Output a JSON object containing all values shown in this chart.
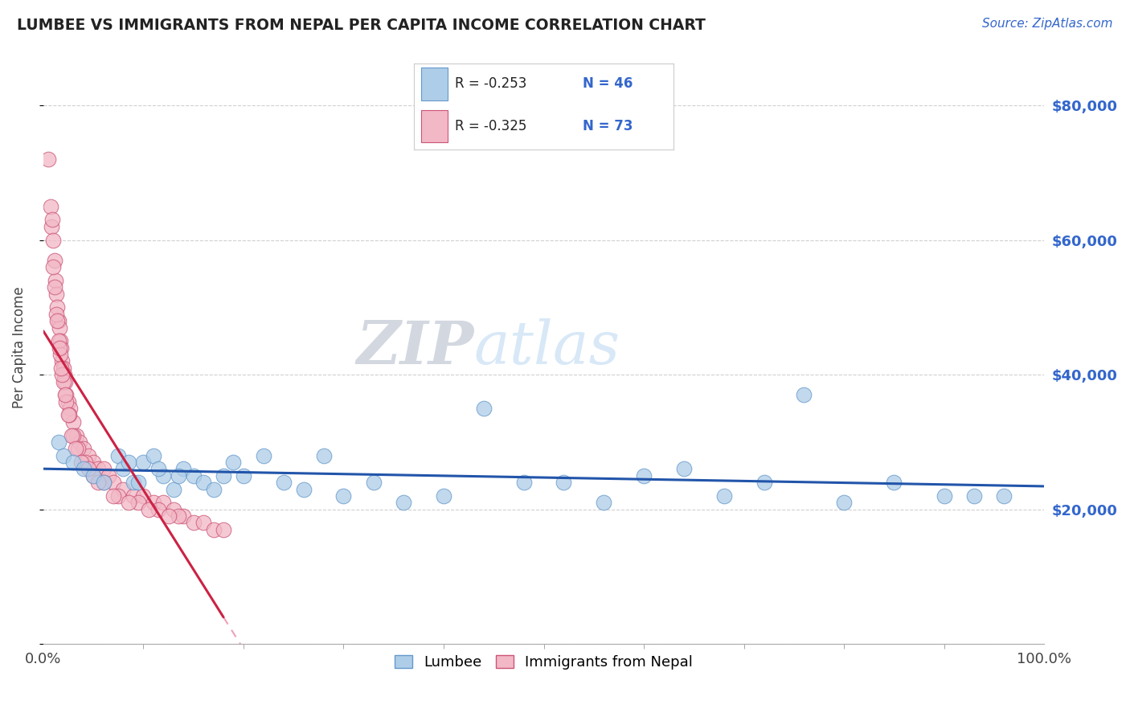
{
  "title": "LUMBEE VS IMMIGRANTS FROM NEPAL PER CAPITA INCOME CORRELATION CHART",
  "source_text": "Source: ZipAtlas.com",
  "ylabel": "Per Capita Income",
  "xmin": 0.0,
  "xmax": 100.0,
  "ymin": 0,
  "ymax": 88000,
  "yticks": [
    0,
    20000,
    40000,
    60000,
    80000
  ],
  "ytick_labels": [
    "",
    "$20,000",
    "$40,000",
    "$60,000",
    "$80,000"
  ],
  "grid_color": "#d0d0d0",
  "background_color": "#ffffff",
  "lumbee_color": "#aecde8",
  "nepal_color": "#f2b8c6",
  "lumbee_edge_color": "#6699cc",
  "nepal_edge_color": "#cc5577",
  "lumbee_line_color": "#2255aa",
  "nepal_line_color": "#cc2244",
  "nepal_dash_color": "#f0a0b8",
  "legend_lumbee_R": "R = -0.253",
  "legend_lumbee_N": "N = 46",
  "legend_nepal_R": "R = -0.325",
  "legend_nepal_N": "N = 73",
  "lumbee_label": "Lumbee",
  "nepal_label": "Immigrants from Nepal",
  "watermark_ZIP": "ZIP",
  "watermark_atlas": "atlas",
  "lumbee_x": [
    1.5,
    2.0,
    3.0,
    4.0,
    5.0,
    6.0,
    7.5,
    8.0,
    9.0,
    10.0,
    11.0,
    12.0,
    13.0,
    14.0,
    15.0,
    16.0,
    17.0,
    18.0,
    19.0,
    20.0,
    22.0,
    24.0,
    26.0,
    28.0,
    30.0,
    33.0,
    36.0,
    40.0,
    44.0,
    48.0,
    52.0,
    56.0,
    60.0,
    64.0,
    68.0,
    72.0,
    76.0,
    80.0,
    85.0,
    90.0,
    93.0,
    96.0,
    8.5,
    9.5,
    11.5,
    13.5
  ],
  "lumbee_y": [
    30000,
    28000,
    27000,
    26000,
    25000,
    24000,
    28000,
    26000,
    24000,
    27000,
    28000,
    25000,
    23000,
    26000,
    25000,
    24000,
    23000,
    25000,
    27000,
    25000,
    28000,
    24000,
    23000,
    28000,
    22000,
    24000,
    21000,
    22000,
    35000,
    24000,
    24000,
    21000,
    25000,
    26000,
    22000,
    24000,
    37000,
    21000,
    24000,
    22000,
    22000,
    22000,
    27000,
    24000,
    26000,
    25000
  ],
  "nepal_x": [
    0.5,
    0.7,
    0.8,
    1.0,
    1.1,
    1.2,
    1.3,
    1.4,
    1.5,
    1.6,
    1.7,
    1.8,
    1.9,
    2.0,
    2.1,
    2.2,
    2.3,
    2.5,
    2.7,
    3.0,
    3.3,
    3.6,
    4.0,
    4.5,
    5.0,
    5.5,
    6.0,
    6.5,
    7.0,
    8.0,
    9.0,
    10.0,
    11.0,
    12.0,
    13.0,
    14.0,
    15.0,
    16.0,
    17.0,
    18.0,
    1.0,
    1.3,
    1.5,
    1.7,
    2.0,
    2.3,
    2.6,
    3.0,
    3.5,
    4.2,
    5.0,
    6.0,
    7.5,
    9.5,
    11.5,
    13.5,
    1.1,
    1.4,
    1.6,
    1.9,
    2.2,
    2.5,
    2.8,
    3.2,
    3.8,
    4.5,
    5.5,
    7.0,
    8.5,
    10.5,
    12.5,
    0.9,
    1.8
  ],
  "nepal_y": [
    72000,
    65000,
    62000,
    60000,
    57000,
    54000,
    52000,
    50000,
    48000,
    47000,
    45000,
    44000,
    42000,
    41000,
    40000,
    39000,
    37000,
    36000,
    35000,
    33000,
    31000,
    30000,
    29000,
    28000,
    27000,
    26000,
    26000,
    25000,
    24000,
    23000,
    22000,
    22000,
    21000,
    21000,
    20000,
    19000,
    18000,
    18000,
    17000,
    17000,
    56000,
    49000,
    45000,
    43000,
    39000,
    36000,
    34000,
    31000,
    29000,
    27000,
    25000,
    24000,
    22000,
    21000,
    20000,
    19000,
    53000,
    48000,
    44000,
    40000,
    37000,
    34000,
    31000,
    29000,
    27000,
    26000,
    24000,
    22000,
    21000,
    20000,
    19000,
    63000,
    41000
  ]
}
